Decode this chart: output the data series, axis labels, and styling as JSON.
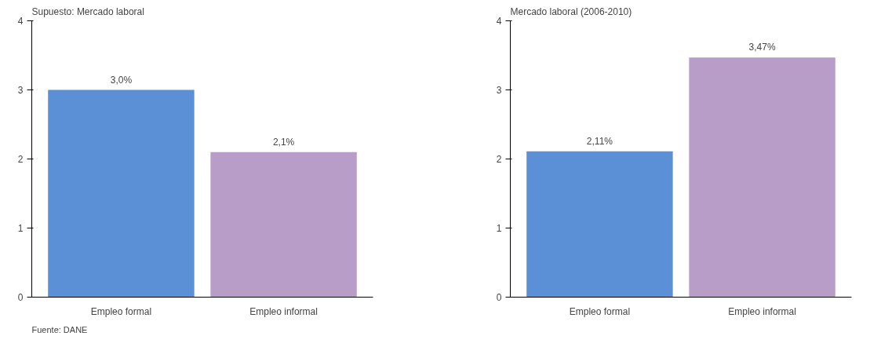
{
  "chart_data": [
    {
      "type": "bar",
      "title": "Supuesto: Mercado laboral",
      "categories": [
        "Empleo formal",
        "Empleo informal"
      ],
      "values": [
        3.0,
        2.1
      ],
      "colors": [
        "#5b8fd6",
        "#b99dc9"
      ],
      "value_labels": [
        "3,0%",
        "2,1%"
      ],
      "ylim": [
        0,
        4
      ],
      "yticks": [
        0,
        1,
        2,
        3,
        4
      ],
      "grid": false,
      "annotations": [
        "Fuente: DANE"
      ]
    },
    {
      "type": "bar",
      "title": "Mercado laboral (2006-2010)",
      "categories": [
        "Empleo formal",
        "Empleo informal"
      ],
      "values": [
        2.11,
        3.47
      ],
      "colors": [
        "#5b8fd6",
        "#b99dc9"
      ],
      "value_labels": [
        "2,11%",
        "3,47%"
      ],
      "ylim": [
        0,
        4
      ],
      "yticks": [
        0,
        1,
        2,
        3,
        4
      ],
      "grid": false
    }
  ]
}
